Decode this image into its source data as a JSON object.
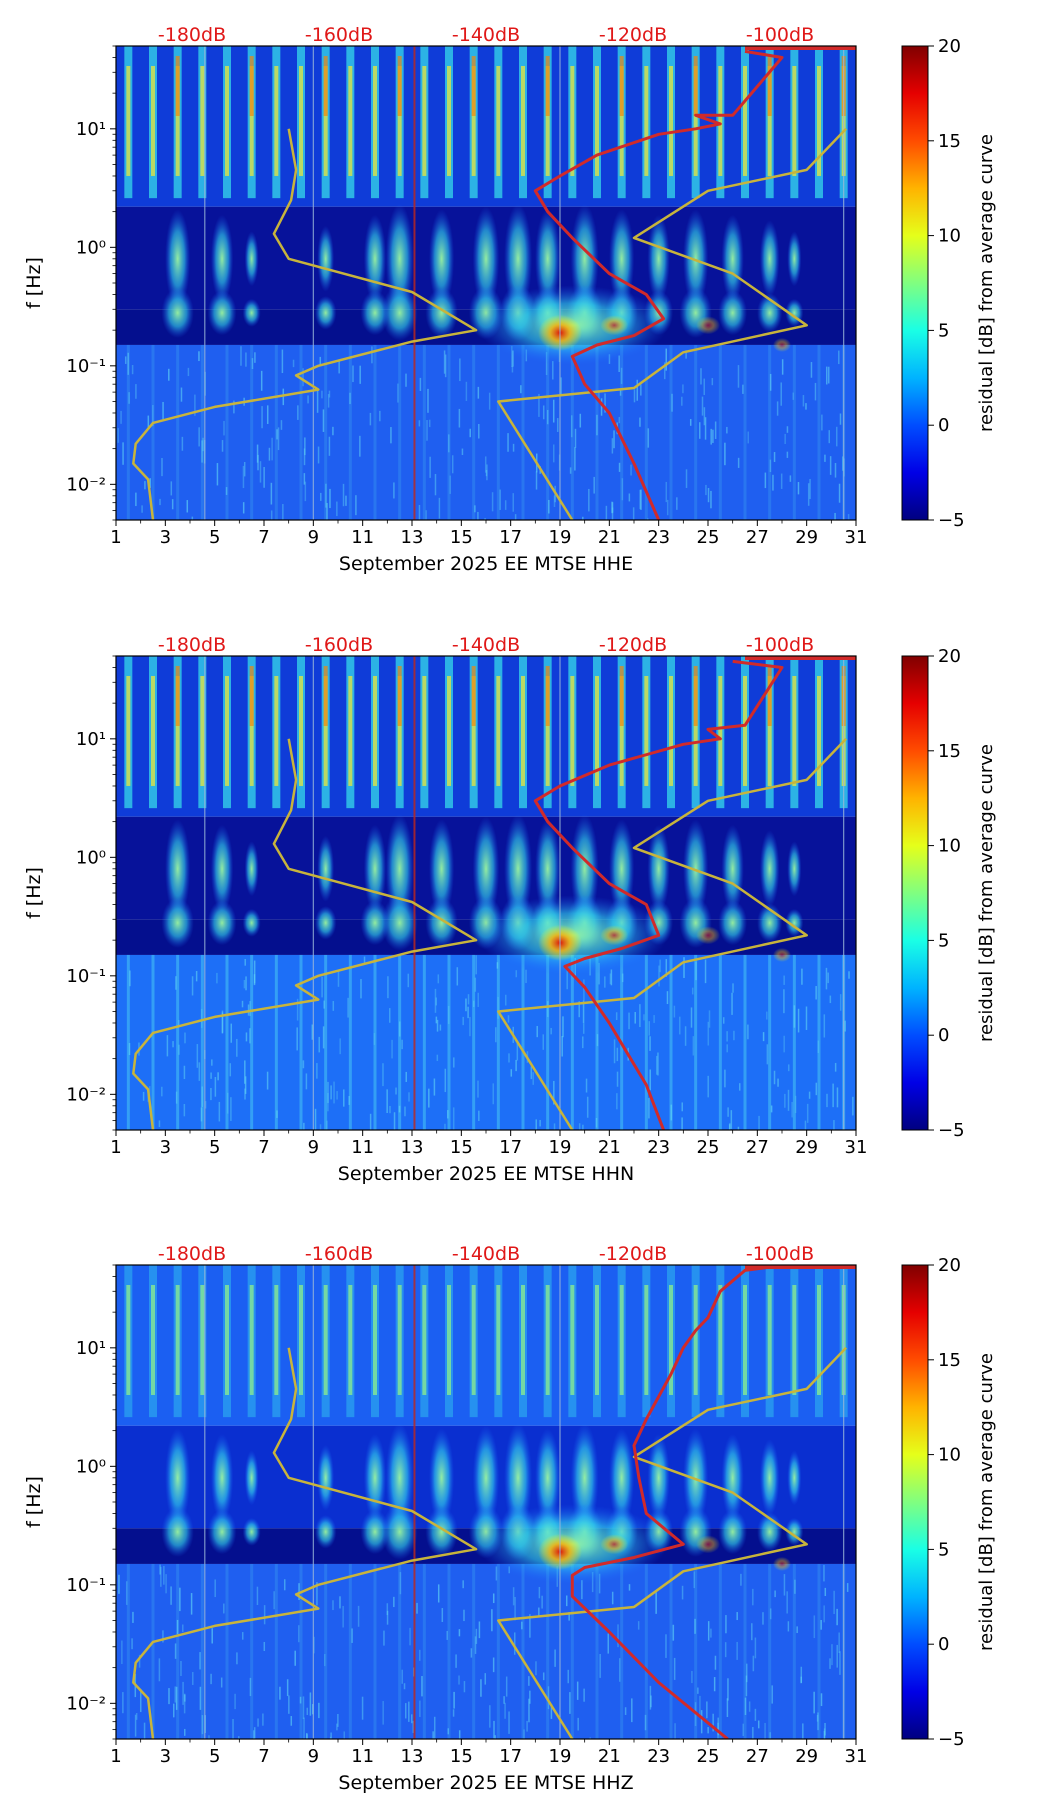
{
  "colors": {
    "noise_model_curve": "#d12a2a",
    "reference_curve": "#c8b43c",
    "db_scale_text": "#e01818",
    "axis": "#000000"
  },
  "colorbar": {
    "label": "residual [dB] from average curve",
    "ticks": [
      "20",
      "15",
      "10",
      "5",
      "0",
      "−5"
    ],
    "tick_values": [
      20,
      15,
      10,
      5,
      0,
      -5
    ],
    "range": [
      -5,
      20
    ],
    "colormap": "jet"
  },
  "chart_data": [
    {
      "type": "heatmap",
      "title": "",
      "xlabel": "September 2025 EE MTSE  HHE",
      "ylabel": "f [Hz]",
      "x_ticks": [
        "1",
        "3",
        "5",
        "7",
        "9",
        "11",
        "13",
        "15",
        "17",
        "19",
        "21",
        "23",
        "25",
        "27",
        "29",
        "31"
      ],
      "xlim": [
        1,
        31
      ],
      "y_ticks": [
        "10⁻²",
        "10⁻¹",
        "10⁰",
        "10¹"
      ],
      "ylim": [
        0.005,
        50
      ],
      "db_scale_labels": [
        "-180dB",
        "-160dB",
        "-140dB",
        "-120dB",
        "-100dB"
      ],
      "db_scale_values": [
        -180,
        -160,
        -140,
        -120,
        -100
      ],
      "series": [
        {
          "name": "reference curve",
          "points": [
            [
              8,
              10
            ],
            [
              8.3,
              4.5
            ],
            [
              8.1,
              2.5
            ],
            [
              7.4,
              1.3
            ],
            [
              8,
              0.8
            ],
            [
              13,
              0.42
            ],
            [
              15.6,
              0.2
            ],
            [
              13,
              0.16
            ],
            [
              9.2,
              0.1
            ],
            [
              8.3,
              0.083
            ],
            [
              9.2,
              0.063
            ],
            [
              5,
              0.045
            ],
            [
              2.5,
              0.033
            ],
            [
              1.8,
              0.022
            ],
            [
              1.7,
              0.015
            ],
            [
              2.3,
              0.011
            ],
            [
              2.5,
              0.005
            ]
          ]
        },
        {
          "name": "reference curve (upper)",
          "points": [
            [
              30.6,
              10
            ],
            [
              29,
              4.5
            ],
            [
              25,
              3
            ],
            [
              22,
              1.2
            ],
            [
              26,
              0.6
            ],
            [
              29,
              0.22
            ],
            [
              24,
              0.13
            ],
            [
              22,
              0.065
            ],
            [
              16.5,
              0.05
            ],
            [
              19.5,
              0.005
            ]
          ]
        },
        {
          "name": "noise model",
          "points": [
            [
              26.5,
              45
            ],
            [
              28,
              40
            ],
            [
              26,
              13
            ],
            [
              24.5,
              13
            ],
            [
              25.5,
              11
            ],
            [
              24.5,
              10
            ],
            [
              23,
              9
            ],
            [
              20.5,
              6
            ],
            [
              19,
              4
            ],
            [
              18,
              3
            ],
            [
              18.5,
              2
            ],
            [
              19.5,
              1.2
            ],
            [
              21,
              0.6
            ],
            [
              22.5,
              0.4
            ],
            [
              23.2,
              0.25
            ],
            [
              22,
              0.18
            ],
            [
              20.5,
              0.15
            ],
            [
              19.5,
              0.12
            ],
            [
              20,
              0.07
            ],
            [
              21,
              0.04
            ],
            [
              22,
              0.015
            ],
            [
              23,
              0.005
            ]
          ]
        }
      ]
    },
    {
      "type": "heatmap",
      "title": "",
      "xlabel": "September 2025 EE MTSE  HHN",
      "ylabel": "f [Hz]",
      "x_ticks": [
        "1",
        "3",
        "5",
        "7",
        "9",
        "11",
        "13",
        "15",
        "17",
        "19",
        "21",
        "23",
        "25",
        "27",
        "29",
        "31"
      ],
      "xlim": [
        1,
        31
      ],
      "y_ticks": [
        "10⁻²",
        "10⁻¹",
        "10⁰",
        "10¹"
      ],
      "ylim": [
        0.005,
        50
      ],
      "db_scale_labels": [
        "-180dB",
        "-160dB",
        "-140dB",
        "-120dB",
        "-100dB"
      ],
      "db_scale_values": [
        -180,
        -160,
        -140,
        -120,
        -100
      ],
      "series": [
        {
          "name": "reference curve",
          "points": [
            [
              8,
              10
            ],
            [
              8.3,
              4.5
            ],
            [
              8.1,
              2.5
            ],
            [
              7.4,
              1.3
            ],
            [
              8,
              0.8
            ],
            [
              13,
              0.42
            ],
            [
              15.6,
              0.2
            ],
            [
              13,
              0.16
            ],
            [
              9.2,
              0.1
            ],
            [
              8.3,
              0.083
            ],
            [
              9.2,
              0.063
            ],
            [
              5,
              0.045
            ],
            [
              2.5,
              0.033
            ],
            [
              1.8,
              0.022
            ],
            [
              1.7,
              0.015
            ],
            [
              2.3,
              0.011
            ],
            [
              2.5,
              0.005
            ]
          ]
        },
        {
          "name": "reference curve (upper)",
          "points": [
            [
              30.6,
              10
            ],
            [
              29,
              4.5
            ],
            [
              25,
              3
            ],
            [
              22,
              1.2
            ],
            [
              26,
              0.6
            ],
            [
              29,
              0.22
            ],
            [
              24,
              0.13
            ],
            [
              22,
              0.065
            ],
            [
              16.5,
              0.05
            ],
            [
              19.5,
              0.005
            ]
          ]
        },
        {
          "name": "noise model",
          "points": [
            [
              26,
              45
            ],
            [
              28,
              40
            ],
            [
              26.5,
              13
            ],
            [
              25,
              12
            ],
            [
              25.5,
              10
            ],
            [
              24,
              9
            ],
            [
              21,
              6
            ],
            [
              19,
              4
            ],
            [
              18,
              3
            ],
            [
              18.5,
              2
            ],
            [
              19.5,
              1.2
            ],
            [
              21,
              0.6
            ],
            [
              22.5,
              0.4
            ],
            [
              23,
              0.22
            ],
            [
              21.5,
              0.17
            ],
            [
              20,
              0.14
            ],
            [
              19.2,
              0.12
            ],
            [
              20,
              0.08
            ],
            [
              21,
              0.04
            ],
            [
              22.5,
              0.012
            ],
            [
              23.2,
              0.005
            ]
          ]
        }
      ]
    },
    {
      "type": "heatmap",
      "title": "",
      "xlabel": "September 2025 EE MTSE  HHZ",
      "ylabel": "f [Hz]",
      "x_ticks": [
        "1",
        "3",
        "5",
        "7",
        "9",
        "11",
        "13",
        "15",
        "17",
        "19",
        "21",
        "23",
        "25",
        "27",
        "29",
        "31"
      ],
      "xlim": [
        1,
        31
      ],
      "y_ticks": [
        "10⁻²",
        "10⁻¹",
        "10⁰",
        "10¹"
      ],
      "ylim": [
        0.005,
        50
      ],
      "db_scale_labels": [
        "-180dB",
        "-160dB",
        "-140dB",
        "-120dB",
        "-100dB"
      ],
      "db_scale_values": [
        -180,
        -160,
        -140,
        -120,
        -100
      ],
      "series": [
        {
          "name": "reference curve",
          "points": [
            [
              8,
              10
            ],
            [
              8.3,
              4.5
            ],
            [
              8.1,
              2.5
            ],
            [
              7.4,
              1.3
            ],
            [
              8,
              0.8
            ],
            [
              13,
              0.42
            ],
            [
              15.6,
              0.2
            ],
            [
              13,
              0.16
            ],
            [
              9.2,
              0.1
            ],
            [
              8.3,
              0.083
            ],
            [
              9.2,
              0.063
            ],
            [
              5,
              0.045
            ],
            [
              2.5,
              0.033
            ],
            [
              1.8,
              0.022
            ],
            [
              1.7,
              0.015
            ],
            [
              2.3,
              0.011
            ],
            [
              2.5,
              0.005
            ]
          ]
        },
        {
          "name": "reference curve (upper)",
          "points": [
            [
              30.6,
              10
            ],
            [
              29,
              4.5
            ],
            [
              25,
              3
            ],
            [
              22,
              1.2
            ],
            [
              26,
              0.6
            ],
            [
              29,
              0.22
            ],
            [
              24,
              0.13
            ],
            [
              22,
              0.065
            ],
            [
              16.5,
              0.05
            ],
            [
              19.5,
              0.005
            ]
          ]
        },
        {
          "name": "noise model",
          "points": [
            [
              27.5,
              48
            ],
            [
              26.5,
              45
            ],
            [
              25.5,
              30
            ],
            [
              25,
              18
            ],
            [
              24.5,
              14
            ],
            [
              24,
              10
            ],
            [
              23.5,
              6
            ],
            [
              22.5,
              2.5
            ],
            [
              22,
              1.5
            ],
            [
              22.2,
              0.8
            ],
            [
              22.5,
              0.4
            ],
            [
              24,
              0.22
            ],
            [
              22,
              0.17
            ],
            [
              20,
              0.14
            ],
            [
              19.5,
              0.12
            ],
            [
              19.5,
              0.08
            ],
            [
              21,
              0.04
            ],
            [
              23,
              0.015
            ],
            [
              25.8,
              0.005
            ]
          ]
        }
      ]
    }
  ]
}
